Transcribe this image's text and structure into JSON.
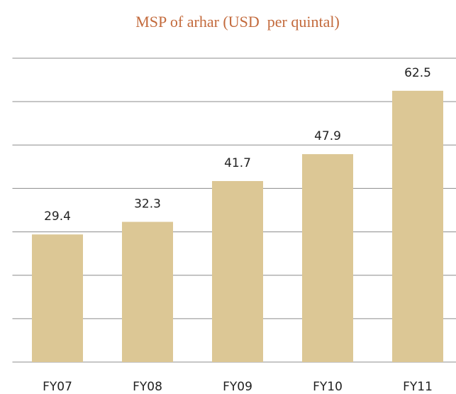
{
  "chart_data": {
    "type": "bar",
    "title": "MSP of arhar (USD  per quintal)",
    "categories": [
      "FY07",
      "FY08",
      "FY09",
      "FY10",
      "FY11"
    ],
    "values": [
      29.4,
      32.3,
      41.7,
      47.9,
      62.5
    ],
    "color": "#dcc795",
    "ylim": [
      0,
      70
    ],
    "yticks": [
      0,
      10,
      20,
      30,
      40,
      50,
      60,
      70
    ],
    "grid": true
  }
}
